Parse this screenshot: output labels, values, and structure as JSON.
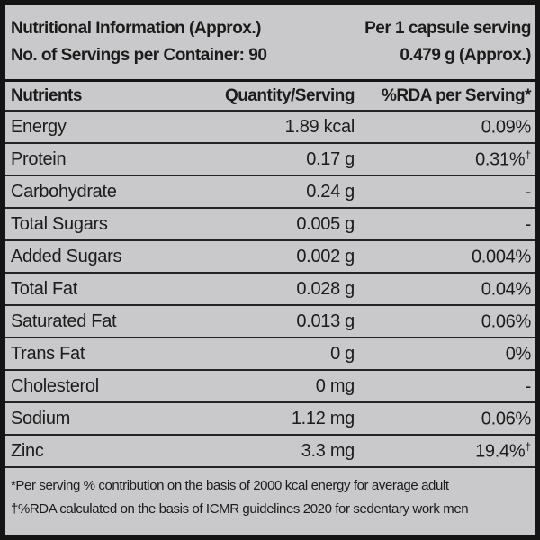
{
  "header": {
    "title": "Nutritional Information (Approx.)",
    "per_serving": "Per 1 capsule serving",
    "servings_per_container": "No. of Servings per Container: 90",
    "serving_size": "0.479 g (Approx.)"
  },
  "columns": {
    "nutrient": "Nutrients",
    "quantity": "Quantity/Serving",
    "rda": "%RDA per Serving*"
  },
  "rows": [
    {
      "nutrient": "Energy",
      "quantity": "1.89 kcal",
      "rda": "0.09%",
      "rda_sup": ""
    },
    {
      "nutrient": "Protein",
      "quantity": "0.17 g",
      "rda": "0.31%",
      "rda_sup": "†"
    },
    {
      "nutrient": "Carbohydrate",
      "quantity": "0.24 g",
      "rda": "-",
      "rda_sup": ""
    },
    {
      "nutrient": "Total Sugars",
      "quantity": "0.005 g",
      "rda": "-",
      "rda_sup": ""
    },
    {
      "nutrient": "Added Sugars",
      "quantity": "0.002 g",
      "rda": "0.004%",
      "rda_sup": ""
    },
    {
      "nutrient": "Total Fat",
      "quantity": "0.028 g",
      "rda": "0.04%",
      "rda_sup": ""
    },
    {
      "nutrient": "Saturated Fat",
      "quantity": "0.013 g",
      "rda": "0.06%",
      "rda_sup": ""
    },
    {
      "nutrient": "Trans Fat",
      "quantity": "0 g",
      "rda": "0%",
      "rda_sup": ""
    },
    {
      "nutrient": "Cholesterol",
      "quantity": "0 mg",
      "rda": "-",
      "rda_sup": ""
    },
    {
      "nutrient": "Sodium",
      "quantity": "1.12 mg",
      "rda": "0.06%",
      "rda_sup": ""
    },
    {
      "nutrient": "Zinc",
      "quantity": "3.3 mg",
      "rda": "19.4%",
      "rda_sup": "†"
    }
  ],
  "footnotes": [
    "*Per serving % contribution on the basis of 2000 kcal energy for average adult",
    "†%RDA calculated on the basis of ICMR guidelines 2020 for sedentary work men"
  ],
  "colors": {
    "bg": "#c9c9cb",
    "ink": "#1b1b1b",
    "line": "#232323",
    "border": "#141414"
  }
}
